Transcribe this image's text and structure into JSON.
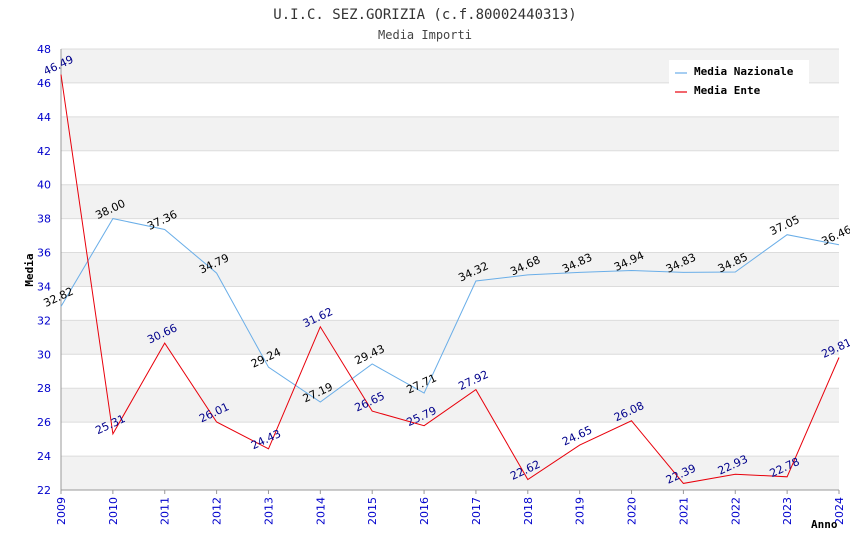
{
  "chart_data": {
    "type": "line",
    "title": "U.I.C. SEZ.GORIZIA (c.f.80002440313)",
    "subtitle": "Media Importi",
    "xlabel": "Anno",
    "ylabel": "Media",
    "ylim": [
      22,
      48
    ],
    "yticks": [
      "22",
      "24",
      "26",
      "28",
      "30",
      "32",
      "34",
      "36",
      "38",
      "40",
      "42",
      "44",
      "46",
      "48"
    ],
    "x": [
      "2009",
      "2010",
      "2011",
      "2012",
      "2013",
      "2014",
      "2015",
      "2016",
      "2017",
      "2018",
      "2019",
      "2020",
      "2021",
      "2022",
      "2023",
      "2024"
    ],
    "grid": "horizontal bands",
    "legend_position": "top-right",
    "series": [
      {
        "name": "Media Nazionale",
        "color": "#6aaee8",
        "label_color": "#000000",
        "values": [
          32.82,
          38.0,
          37.36,
          34.79,
          29.24,
          27.19,
          29.43,
          27.71,
          34.32,
          34.68,
          34.83,
          34.94,
          34.83,
          34.85,
          37.05,
          36.46
        ],
        "labels": [
          "32.82",
          "38.00",
          "37.36",
          "34.79",
          "29.24",
          "27.19",
          "29.43",
          "27.71",
          "34.32",
          "34.68",
          "34.83",
          "34.94",
          "34.83",
          "34.85",
          "37.05",
          "36.46"
        ]
      },
      {
        "name": "Media Ente",
        "color": "#e8000b",
        "label_color": "#00008b",
        "values": [
          46.49,
          25.31,
          30.66,
          26.01,
          24.43,
          31.62,
          26.65,
          25.79,
          27.92,
          22.62,
          24.65,
          26.08,
          22.39,
          22.93,
          22.78,
          29.81
        ],
        "labels": [
          "46.49",
          "25.31",
          "30.66",
          "26.01",
          "24.43",
          "31.62",
          "26.65",
          "25.79",
          "27.92",
          "22.62",
          "24.65",
          "26.08",
          "22.39",
          "22.93",
          "22.78",
          "29.81"
        ]
      }
    ]
  }
}
